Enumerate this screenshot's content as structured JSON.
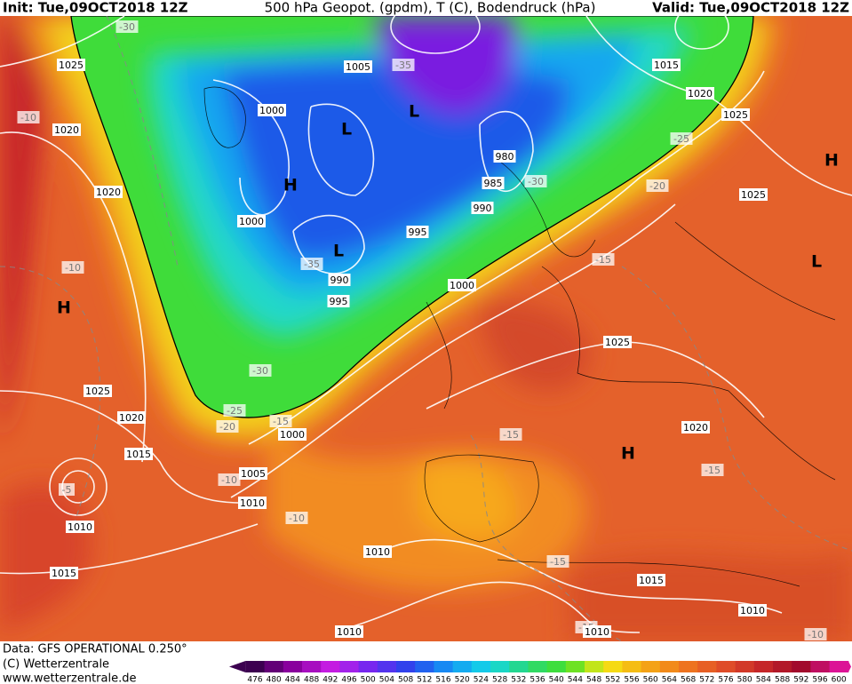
{
  "header": {
    "init": "Init: Tue,09OCT2018 12Z",
    "title": "500 hPa Geopot. (gpdm), T (C), Bodendruck (hPa)",
    "valid": "Valid: Tue,09OCT2018 12Z"
  },
  "map_labels": [
    "-30",
    "1025",
    "-10",
    "1020",
    "1020",
    "-10",
    "H",
    "1025",
    "1020",
    "1015",
    "-5",
    "1010",
    "1015",
    "1005",
    "-35",
    "1000",
    "L",
    "L",
    "980",
    "985",
    "-30",
    "990",
    "H",
    "1000",
    "995",
    "L",
    "-35",
    "990",
    "995",
    "1000",
    "1015",
    "1020",
    "1025",
    "-25",
    "H",
    "-20",
    "1025",
    "L",
    "-15",
    "1025",
    "-30",
    "-25",
    "-20",
    "-15",
    "1000",
    "-15",
    "1020",
    "H",
    "-15",
    "1005",
    "-10",
    "1010",
    "-10",
    "1010",
    "-15",
    "1015",
    "1010",
    "1010",
    "-15",
    "1010",
    "-10"
  ],
  "footer": {
    "data": "Data: GFS OPERATIONAL 0.250°",
    "copyright": "(C) Wetterzentrale",
    "url": "www.wetterzentrale.de"
  },
  "colorbar": {
    "ticks": [
      476,
      480,
      484,
      488,
      492,
      496,
      500,
      504,
      508,
      512,
      516,
      520,
      524,
      528,
      532,
      536,
      540,
      544,
      548,
      552,
      556,
      560,
      564,
      568,
      572,
      576,
      580,
      584,
      588,
      592,
      596,
      600
    ]
  }
}
